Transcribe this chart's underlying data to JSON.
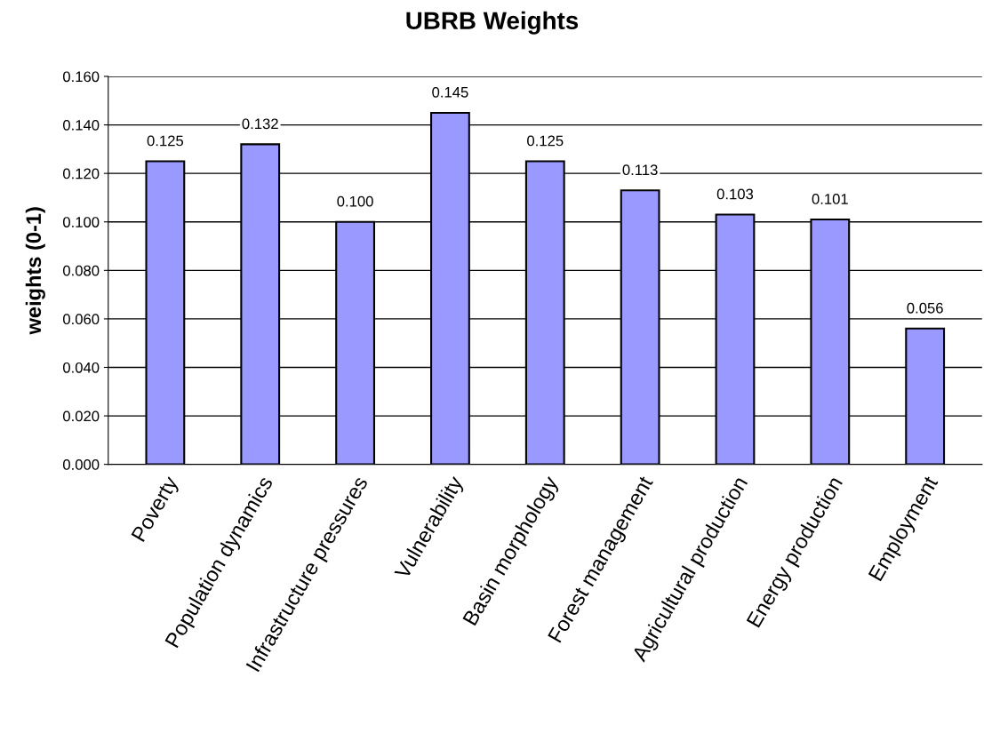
{
  "chart_data": {
    "type": "bar",
    "title": "UBRB Weights",
    "ylabel": "weights (0-1)",
    "categories": [
      "Poverty",
      "Population dynamics",
      "Infrastructure pressures",
      "Vulnerability",
      "Basin morphology",
      "Forest management",
      "Agricultural production",
      "Energy production",
      "Employment"
    ],
    "values": [
      0.125,
      0.132,
      0.1,
      0.145,
      0.125,
      0.113,
      0.103,
      0.101,
      0.056
    ],
    "value_labels": [
      "0.125",
      "0.132",
      "0.100",
      "0.145",
      "0.125",
      "0.113",
      "0.103",
      "0.101",
      "0.056"
    ],
    "color": "#9999ff",
    "ylim": [
      0,
      0.16
    ],
    "yticks": [
      {
        "value": 0,
        "label": "0.000"
      },
      {
        "value": 0.02,
        "label": "0.020"
      },
      {
        "value": 0.04,
        "label": "0.040"
      },
      {
        "value": 0.06,
        "label": "0.060"
      },
      {
        "value": 0.08,
        "label": "0.080"
      },
      {
        "value": 0.1,
        "label": "0.100"
      },
      {
        "value": 0.12,
        "label": "0.120"
      },
      {
        "value": 0.14,
        "label": "0.140"
      },
      {
        "value": 0.16,
        "label": "0.160"
      }
    ],
    "grid": "y",
    "legend": false
  }
}
